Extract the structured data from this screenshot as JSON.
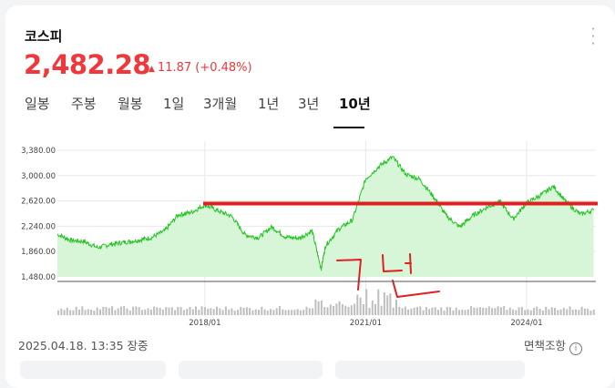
{
  "index_name": "코스피",
  "price": "2,482.28",
  "change": "11.87 (+0.48%)",
  "tabs": [
    "일봉",
    "주봉",
    "월봉",
    "1일",
    "3개월",
    "1년",
    "3년",
    "10년"
  ],
  "active_tab": "10년",
  "timestamp": "2025.04.18. 13:35 장중",
  "disclaimer": "면책조항",
  "annotation_text": "ㄱ 년",
  "colors": {
    "accent": "#f0373c",
    "line": "#22c322",
    "fill": "#d7f5d7",
    "annotation": "#e02020"
  },
  "chart_data": {
    "type": "area",
    "title": "",
    "xlabel": "",
    "ylabel": "",
    "ylim": [
      1480,
      3380
    ],
    "yticks": [
      "3,380.00",
      "3,000.00",
      "2,620.00",
      "2,240.00",
      "1,860.00",
      "1,480.00"
    ],
    "xticks": [
      "2018/01",
      "2021/01",
      "2024/01"
    ],
    "grid": true,
    "series": [
      {
        "x": [
          "2015/04",
          "2015/07",
          "2015/10",
          "2016/01",
          "2016/04",
          "2016/07",
          "2016/10",
          "2017/01",
          "2017/04",
          "2017/07",
          "2017/10",
          "2018/01",
          "2018/04",
          "2018/07",
          "2018/10",
          "2019/01",
          "2019/04",
          "2019/07",
          "2019/10",
          "2020/01",
          "2020/03",
          "2020/04",
          "2020/07",
          "2020/10",
          "2021/01",
          "2021/04",
          "2021/07",
          "2021/10",
          "2022/01",
          "2022/04",
          "2022/07",
          "2022/10",
          "2023/01",
          "2023/04",
          "2023/07",
          "2023/10",
          "2024/01",
          "2024/04",
          "2024/07",
          "2024/10",
          "2025/01",
          "2025/04"
        ],
        "values": [
          2120,
          2030,
          2010,
          1920,
          1970,
          2000,
          2030,
          2070,
          2170,
          2410,
          2450,
          2560,
          2470,
          2390,
          2110,
          2070,
          2230,
          2080,
          2060,
          2170,
          1600,
          1950,
          2200,
          2330,
          2950,
          3140,
          3280,
          3020,
          2950,
          2700,
          2400,
          2230,
          2400,
          2520,
          2610,
          2350,
          2590,
          2700,
          2840,
          2590,
          2420,
          2482
        ]
      }
    ],
    "reference_line": {
      "label": "",
      "value": 2580
    },
    "volume": true
  }
}
